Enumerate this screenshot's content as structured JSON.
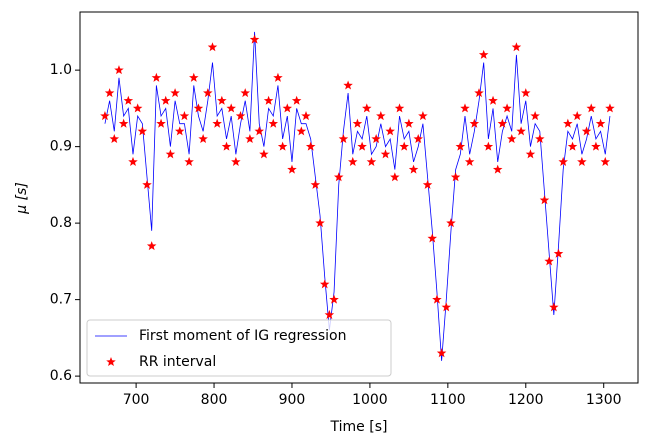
{
  "chart_data": {
    "type": "line",
    "xlabel": "Time [s]",
    "ylabel": "μ [s]",
    "x": [
      660,
      666,
      672,
      678,
      684,
      690,
      696,
      702,
      708,
      714,
      720,
      726,
      732,
      738,
      744,
      750,
      756,
      762,
      768,
      774,
      780,
      786,
      792,
      798,
      804,
      810,
      816,
      822,
      828,
      834,
      840,
      846,
      852,
      858,
      864,
      870,
      876,
      882,
      888,
      894,
      900,
      906,
      912,
      918,
      924,
      930,
      936,
      942,
      948,
      954,
      960,
      966,
      972,
      978,
      984,
      990,
      996,
      1002,
      1008,
      1014,
      1020,
      1026,
      1032,
      1038,
      1044,
      1050,
      1056,
      1062,
      1068,
      1074,
      1080,
      1086,
      1092,
      1098,
      1104,
      1110,
      1116,
      1122,
      1128,
      1134,
      1140,
      1146,
      1152,
      1158,
      1164,
      1170,
      1176,
      1182,
      1188,
      1194,
      1200,
      1206,
      1212,
      1218,
      1224,
      1230,
      1236,
      1242,
      1248,
      1254,
      1260,
      1266,
      1272,
      1278,
      1284,
      1290,
      1296,
      1302,
      1308
    ],
    "series": [
      {
        "name": "First moment of IG regression",
        "color": "#0000ff",
        "marker": "none",
        "values": [
          0.93,
          0.96,
          0.92,
          0.99,
          0.94,
          0.95,
          0.89,
          0.94,
          0.93,
          0.86,
          0.79,
          0.98,
          0.94,
          0.95,
          0.9,
          0.96,
          0.93,
          0.93,
          0.89,
          0.98,
          0.94,
          0.92,
          0.96,
          1.01,
          0.94,
          0.95,
          0.91,
          0.94,
          0.89,
          0.93,
          0.96,
          0.92,
          1.05,
          0.93,
          0.9,
          0.95,
          0.94,
          0.98,
          0.91,
          0.94,
          0.88,
          0.95,
          0.93,
          0.93,
          0.91,
          0.86,
          0.81,
          0.73,
          0.66,
          0.71,
          0.85,
          0.92,
          0.97,
          0.89,
          0.92,
          0.91,
          0.94,
          0.89,
          0.9,
          0.93,
          0.9,
          0.91,
          0.87,
          0.94,
          0.91,
          0.92,
          0.88,
          0.9,
          0.93,
          0.86,
          0.79,
          0.71,
          0.62,
          0.7,
          0.79,
          0.87,
          0.89,
          0.94,
          0.89,
          0.92,
          0.96,
          1.01,
          0.91,
          0.95,
          0.88,
          0.92,
          0.94,
          0.92,
          1.02,
          0.93,
          0.96,
          0.9,
          0.93,
          0.92,
          0.84,
          0.76,
          0.68,
          0.77,
          0.87,
          0.92,
          0.91,
          0.93,
          0.89,
          0.91,
          0.94,
          0.91,
          0.92,
          0.89,
          0.94
        ]
      },
      {
        "name": "RR interval",
        "color": "#ff0000",
        "marker": "star",
        "values": [
          0.94,
          0.97,
          0.91,
          1.0,
          0.93,
          0.96,
          0.88,
          0.95,
          0.92,
          0.85,
          0.77,
          0.99,
          0.93,
          0.96,
          0.89,
          0.97,
          0.92,
          0.94,
          0.88,
          0.99,
          0.95,
          0.91,
          0.97,
          1.03,
          0.93,
          0.96,
          0.9,
          0.95,
          0.88,
          0.94,
          0.97,
          0.91,
          1.04,
          0.92,
          0.89,
          0.96,
          0.93,
          0.99,
          0.9,
          0.95,
          0.87,
          0.96,
          0.92,
          0.94,
          0.9,
          0.85,
          0.8,
          0.72,
          0.68,
          0.7,
          0.86,
          0.91,
          0.98,
          0.88,
          0.93,
          0.9,
          0.95,
          0.88,
          0.91,
          0.94,
          0.89,
          0.92,
          0.86,
          0.95,
          0.9,
          0.93,
          0.87,
          0.91,
          0.94,
          0.85,
          0.78,
          0.7,
          0.63,
          0.69,
          0.8,
          0.86,
          0.9,
          0.95,
          0.88,
          0.93,
          0.97,
          1.02,
          0.9,
          0.96,
          0.87,
          0.93,
          0.95,
          0.91,
          1.03,
          0.92,
          0.97,
          0.89,
          0.94,
          0.91,
          0.83,
          0.75,
          0.69,
          0.76,
          0.88,
          0.93,
          0.9,
          0.94,
          0.88,
          0.92,
          0.95,
          0.9,
          0.93,
          0.88,
          0.95
        ]
      }
    ],
    "xlim": [
      628,
      1344
    ],
    "xticks": [
      700,
      800,
      900,
      1000,
      1100,
      1200,
      1300
    ],
    "ylim": [
      0.591,
      1.076
    ],
    "yticks": [
      0.6,
      0.7,
      0.8,
      0.9,
      {
        "value": 1,
        "label": "1.0"
      }
    ],
    "legend": "lower left"
  }
}
